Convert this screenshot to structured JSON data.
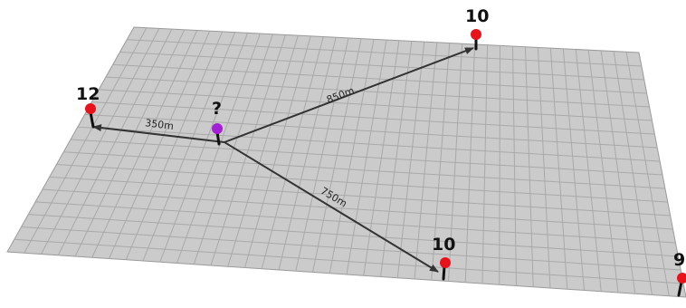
{
  "pins": {
    "left": {
      "value": "12",
      "color": "#e8121a"
    },
    "top": {
      "value": "10",
      "color": "#e8121a"
    },
    "bottom": {
      "value": "10",
      "color": "#e8121a"
    },
    "right": {
      "value": "9",
      "color": "#e8121a"
    },
    "unknown": {
      "value": "?",
      "color": "#a21fd6"
    }
  },
  "distances": {
    "to_left": "350m",
    "to_top": "850m",
    "to_bottom": "750m"
  },
  "colors": {
    "plane_fill": "#cbcbcb",
    "grid_line": "#a9a9a9",
    "arrow": "#333333"
  }
}
